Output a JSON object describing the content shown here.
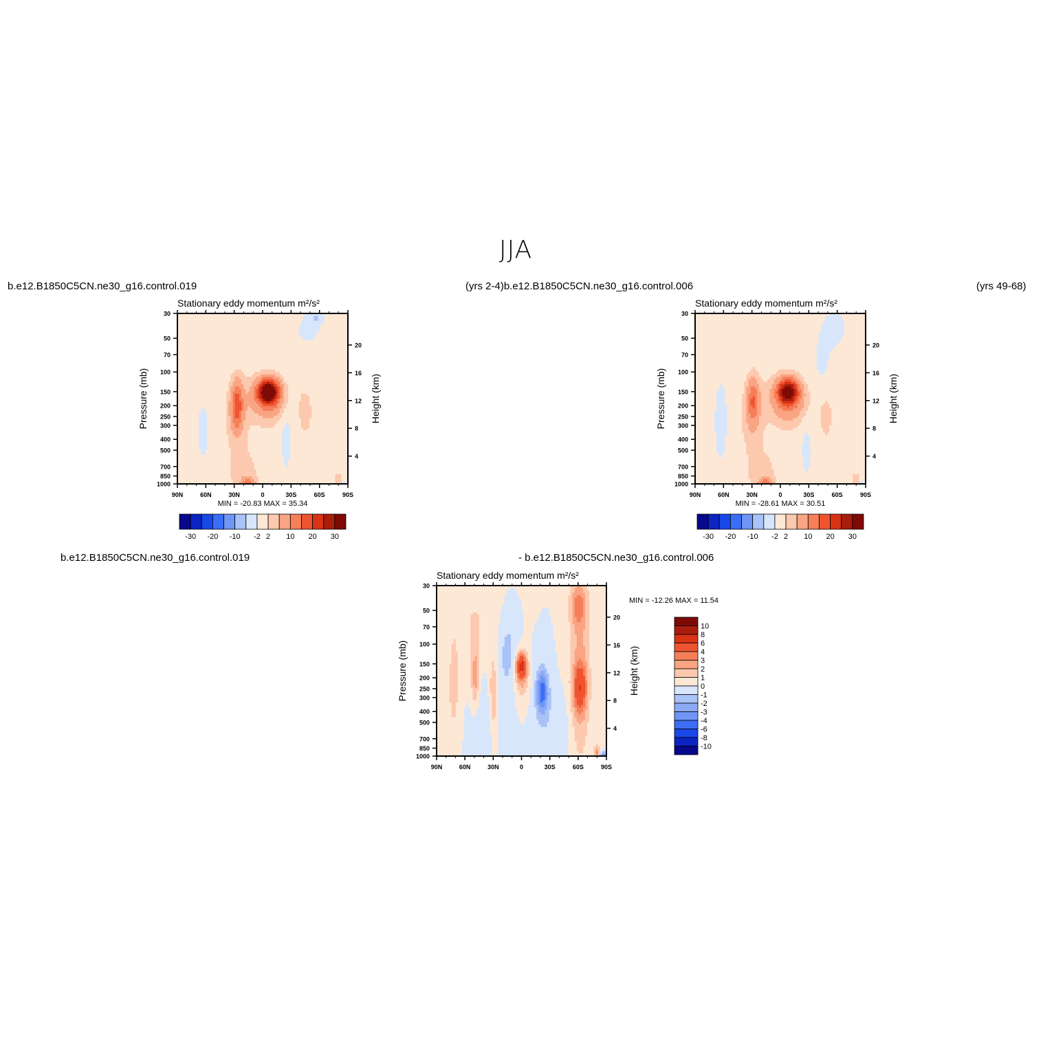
{
  "page": {
    "title": "JJA",
    "top_left_case": "b.e12.B1850C5CN.ne30_g16.control.019",
    "top_middle_label": "(yrs 2-4)b.e12.B1850C5CN.ne30_g16.control.006",
    "top_right_label": "(yrs 49-68)",
    "bottom_left_case": "b.e12.B1850C5CN.ne30_g16.control.019",
    "bottom_middle_label": "- b.e12.B1850C5CN.ne30_g16.control.006"
  },
  "colors": {
    "palette_abs": [
      "#08088a",
      "#0c24c2",
      "#1848e8",
      "#3b6ef5",
      "#6f95f5",
      "#a9c2f7",
      "#d7e6fb",
      "#fde8d6",
      "#fcc8ae",
      "#f9a482",
      "#f57f59",
      "#ef5431",
      "#d93315",
      "#a91d0c",
      "#7e0a06"
    ],
    "palette_diff": [
      "#08088a",
      "#0c24c2",
      "#1848e8",
      "#3b6ef5",
      "#6f95f5",
      "#8cabf6",
      "#a9c2f7",
      "#d7e6fb",
      "#fde8d6",
      "#fcc8ae",
      "#f9a482",
      "#f57f59",
      "#ef5431",
      "#d93315",
      "#a91d0c",
      "#7e0a06"
    ]
  },
  "chart_data": [
    {
      "type": "heatmap",
      "panel": "top-left",
      "title": "Stationary eddy momentum",
      "units_label": "m²/s²",
      "xlabel": "",
      "ylabel": "Pressure (mb)",
      "ylabel_right": "Height (km)",
      "x_ticks": [
        "90N",
        "60N",
        "30N",
        "0",
        "30S",
        "60S",
        "90S"
      ],
      "x_range": [
        90,
        -90
      ],
      "y_ticks": [
        30,
        50,
        70,
        100,
        150,
        200,
        250,
        300,
        400,
        500,
        700,
        850,
        1000
      ],
      "y_range": [
        30,
        1000
      ],
      "y_scale": "log",
      "height_ticks": [
        4,
        8,
        12,
        16,
        20
      ],
      "stats": "MIN = -20.83   MAX =  35.34",
      "min": -20.83,
      "max": 35.34,
      "colorbar_ticks": [
        "-30",
        "-20",
        "-10",
        "-2",
        "2",
        "10",
        "20",
        "30"
      ],
      "colorbar_orientation": "horizontal",
      "features": [
        {
          "lat": -6,
          "p": 150,
          "value": 35,
          "wlat": 7,
          "wp": 0.16
        },
        {
          "lat": -6,
          "p": 170,
          "value": 12,
          "wlat": 13,
          "wp": 0.3
        },
        {
          "lat": 27,
          "p": 200,
          "value": 14,
          "wlat": 4,
          "wp": 0.32
        },
        {
          "lat": 27,
          "p": 220,
          "value": 5,
          "wlat": 8,
          "wp": 0.55
        },
        {
          "lat": 20,
          "p": 800,
          "value": 3,
          "wlat": 10,
          "wp": 0.3
        },
        {
          "lat": 15,
          "p": 980,
          "value": 10,
          "wlat": 5,
          "wp": 0.07
        },
        {
          "lat": -45,
          "p": 220,
          "value": 3,
          "wlat": 5,
          "wp": 0.35
        },
        {
          "lat": -80,
          "p": 950,
          "value": 4,
          "wlat": 3,
          "wp": 0.12
        },
        {
          "lat": -86,
          "p": 990,
          "value": -6,
          "wlat": 2,
          "wp": 0.05
        },
        {
          "lat": 63,
          "p": 350,
          "value": -4,
          "wlat": 5,
          "wp": 0.5
        },
        {
          "lat": -25,
          "p": 400,
          "value": -4,
          "wlat": 5,
          "wp": 0.6
        },
        {
          "lat": -50,
          "p": 40,
          "value": -3,
          "wlat": 11,
          "wp": 0.28
        },
        {
          "lat": -58,
          "p": 32,
          "value": -4,
          "wlat": 6,
          "wp": 0.12
        },
        {
          "lat": 45,
          "p": 50,
          "value": -1.5,
          "wlat": 25,
          "wp": 0.9
        },
        {
          "lat": -28,
          "p": 70,
          "value": -1.5,
          "wlat": 20,
          "wp": 0.6
        }
      ]
    },
    {
      "type": "heatmap",
      "panel": "top-right",
      "title": "Stationary eddy momentum",
      "units_label": "m²/s²",
      "xlabel": "",
      "ylabel": "Pressure (mb)",
      "ylabel_right": "Height (km)",
      "x_ticks": [
        "90N",
        "60N",
        "30N",
        "0",
        "30S",
        "60S",
        "90S"
      ],
      "x_range": [
        90,
        -90
      ],
      "y_ticks": [
        30,
        50,
        70,
        100,
        150,
        200,
        250,
        300,
        400,
        500,
        700,
        850,
        1000
      ],
      "y_range": [
        30,
        1000
      ],
      "y_scale": "log",
      "height_ticks": [
        4,
        8,
        12,
        16,
        20
      ],
      "stats": "MIN = -28.61   MAX =  30.51",
      "min": -28.61,
      "max": 30.51,
      "colorbar_ticks": [
        "-30",
        "-20",
        "-10",
        "-2",
        "2",
        "10",
        "20",
        "30"
      ],
      "colorbar_orientation": "horizontal",
      "features": [
        {
          "lat": -8,
          "p": 150,
          "value": 30,
          "wlat": 7,
          "wp": 0.17
        },
        {
          "lat": -8,
          "p": 175,
          "value": 11,
          "wlat": 13,
          "wp": 0.32
        },
        {
          "lat": 29,
          "p": 180,
          "value": 11,
          "wlat": 4,
          "wp": 0.3
        },
        {
          "lat": 29,
          "p": 220,
          "value": 5,
          "wlat": 8,
          "wp": 0.55
        },
        {
          "lat": 20,
          "p": 800,
          "value": 3,
          "wlat": 10,
          "wp": 0.3
        },
        {
          "lat": 15,
          "p": 980,
          "value": 10,
          "wlat": 5,
          "wp": 0.07
        },
        {
          "lat": -48,
          "p": 240,
          "value": 3,
          "wlat": 5,
          "wp": 0.35
        },
        {
          "lat": -80,
          "p": 950,
          "value": 4,
          "wlat": 3,
          "wp": 0.12
        },
        {
          "lat": -86,
          "p": 990,
          "value": -6,
          "wlat": 2,
          "wp": 0.05
        },
        {
          "lat": 63,
          "p": 300,
          "value": -4,
          "wlat": 6,
          "wp": 0.7
        },
        {
          "lat": -28,
          "p": 500,
          "value": -4,
          "wlat": 5,
          "wp": 0.45
        },
        {
          "lat": -58,
          "p": 40,
          "value": -4,
          "wlat": 10,
          "wp": 0.3
        },
        {
          "lat": -45,
          "p": 90,
          "value": -2,
          "wlat": 8,
          "wp": 0.5
        },
        {
          "lat": 45,
          "p": 50,
          "value": -1.5,
          "wlat": 25,
          "wp": 0.9
        },
        {
          "lat": -30,
          "p": 70,
          "value": -1.5,
          "wlat": 20,
          "wp": 0.6
        }
      ]
    },
    {
      "type": "heatmap",
      "panel": "bottom-difference",
      "title": "Stationary eddy momentum",
      "units_label": "m²/s²",
      "xlabel": "",
      "ylabel": "Pressure (mb)",
      "ylabel_right": "Height (km)",
      "x_ticks": [
        "90N",
        "60N",
        "30N",
        "0",
        "30S",
        "60S",
        "90S"
      ],
      "x_range": [
        90,
        -90
      ],
      "y_ticks": [
        30,
        50,
        70,
        100,
        150,
        200,
        250,
        300,
        400,
        500,
        700,
        850,
        1000
      ],
      "y_range": [
        30,
        1000
      ],
      "y_scale": "log",
      "height_ticks": [
        4,
        8,
        12,
        16,
        20
      ],
      "stats": "MIN = -12.26   MAX =  11.54",
      "min": -12.26,
      "max": 11.54,
      "colorbar_ticks": [
        "10",
        "8",
        "6",
        "4",
        "3",
        "2",
        "1",
        "0",
        "-1",
        "-2",
        "-3",
        "-4",
        "-6",
        "-8",
        "-10"
      ],
      "colorbar_orientation": "vertical",
      "features": [
        {
          "lat": 0,
          "p": 155,
          "value": 5,
          "wlat": 4,
          "wp": 0.18
        },
        {
          "lat": 0,
          "p": 190,
          "value": 2.5,
          "wlat": 5,
          "wp": 0.3
        },
        {
          "lat": -22,
          "p": 260,
          "value": -3.5,
          "wlat": 4,
          "wp": 0.28
        },
        {
          "lat": -22,
          "p": 320,
          "value": -1.5,
          "wlat": 6,
          "wp": 0.5
        },
        {
          "lat": -62,
          "p": 250,
          "value": 4,
          "wlat": 5,
          "wp": 0.35
        },
        {
          "lat": -62,
          "p": 150,
          "value": 2.2,
          "wlat": 8,
          "wp": 1.5
        },
        {
          "lat": -60,
          "p": 45,
          "value": 2.2,
          "wlat": 6,
          "wp": 0.3
        },
        {
          "lat": 49,
          "p": 200,
          "value": 2.5,
          "wlat": 3,
          "wp": 0.45
        },
        {
          "lat": 30,
          "p": 300,
          "value": 2,
          "wlat": 3,
          "wp": 0.6
        },
        {
          "lat": 72,
          "p": 250,
          "value": 1.5,
          "wlat": 4,
          "wp": 0.7
        },
        {
          "lat": 15,
          "p": 120,
          "value": -1.5,
          "wlat": 7,
          "wp": 0.6
        },
        {
          "lat": 40,
          "p": 500,
          "value": -1,
          "wlat": 8,
          "wp": 0.6
        },
        {
          "lat": 50,
          "p": 60,
          "value": 1,
          "wlat": 20,
          "wp": 0.7
        },
        {
          "lat": -80,
          "p": 950,
          "value": 3,
          "wlat": 2,
          "wp": 0.12
        },
        {
          "lat": -87,
          "p": 990,
          "value": -4,
          "wlat": 2,
          "wp": 0.05
        },
        {
          "lat": -40,
          "p": 600,
          "value": -1,
          "wlat": 8,
          "wp": 0.5
        }
      ]
    }
  ]
}
